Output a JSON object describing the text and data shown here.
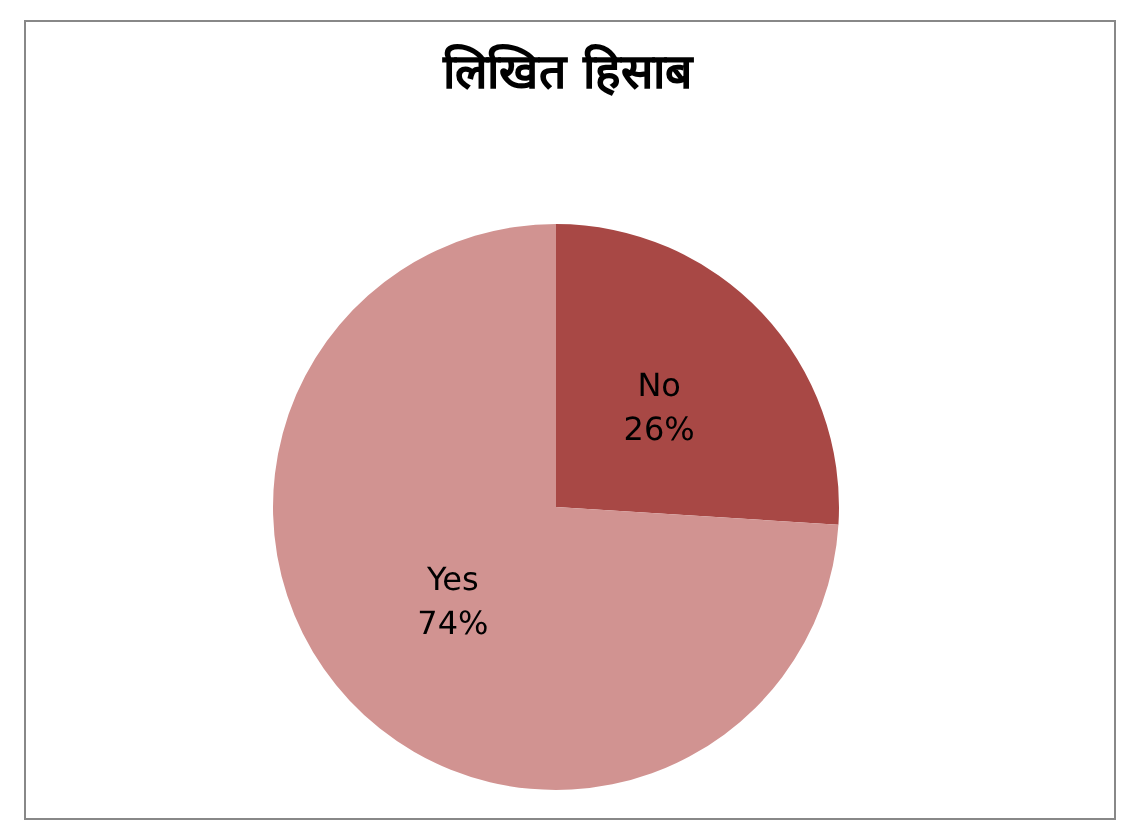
{
  "chart_data": {
    "type": "pie",
    "title": "लिखित हिसाब",
    "categories": [
      "No",
      "Yes"
    ],
    "values": [
      26,
      74
    ],
    "value_labels": [
      "26%",
      "74%"
    ],
    "colors": [
      "#a84845",
      "#d19391"
    ],
    "legend": false
  }
}
